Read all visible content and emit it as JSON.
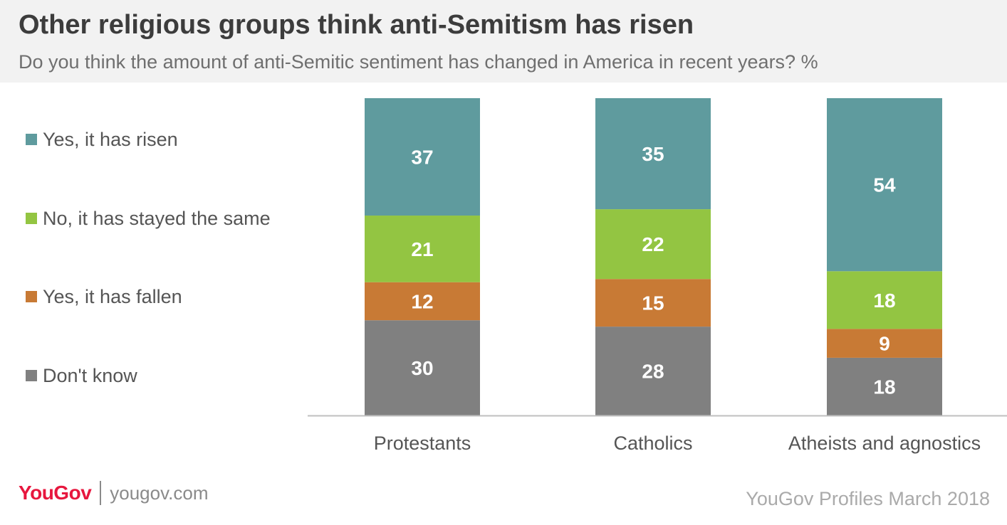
{
  "header": {
    "title": "Other religious groups think anti-Semitism has risen",
    "subtitle": "Do you think the amount of anti-Semitic sentiment has changed in America in recent years? %"
  },
  "footer": {
    "logo_text": "YouGov",
    "logo_url": "yougov.com",
    "source": "YouGov Profiles March 2018"
  },
  "colors": {
    "risen": "#5f9b9e",
    "same": "#93c542",
    "fallen": "#c87a35",
    "dont_know": "#808080"
  },
  "chart_data": {
    "type": "bar",
    "stacked": true,
    "categories": [
      "Protestants",
      "Catholics",
      "Atheists and agnostics"
    ],
    "series": [
      {
        "name": "Don't know",
        "values": [
          30,
          28,
          18
        ],
        "color": "#808080"
      },
      {
        "name": "Yes, it has fallen",
        "values": [
          12,
          15,
          9
        ],
        "color": "#c87a35"
      },
      {
        "name": "No, it has stayed the same",
        "values": [
          21,
          22,
          18
        ],
        "color": "#93c542"
      },
      {
        "name": "Yes, it has risen",
        "values": [
          37,
          35,
          54
        ],
        "color": "#5f9b9e"
      }
    ],
    "legend": {
      "position": "left",
      "items": [
        "Yes, it has risen",
        "No, it has stayed the same",
        "Yes, it has fallen",
        "Don't know"
      ]
    },
    "ylim": [
      0,
      100
    ],
    "grid": false
  }
}
